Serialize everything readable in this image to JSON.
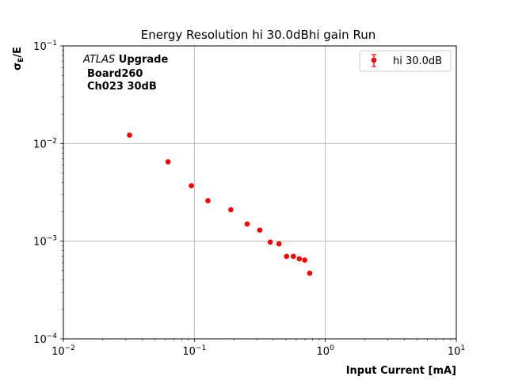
{
  "chart_data": {
    "type": "scatter",
    "title": "Energy Resolution hi 30.0dBhi gain Run",
    "xlabel": "Input Current [mA]",
    "ylabel_main": "σ",
    "ylabel_sub": "E",
    "ylabel_tail": "/E",
    "xscale": "log",
    "yscale": "log",
    "xlim": [
      0.01,
      10
    ],
    "ylim": [
      0.0001,
      0.1
    ],
    "x_ticks": [
      {
        "base": "10",
        "exp": "−2",
        "value": 0.01
      },
      {
        "base": "10",
        "exp": "−1",
        "value": 0.1
      },
      {
        "base": "10",
        "exp": "0",
        "value": 1
      },
      {
        "base": "10",
        "exp": "1",
        "value": 10
      }
    ],
    "y_ticks": [
      {
        "base": "10",
        "exp": "−4",
        "value": 0.0001
      },
      {
        "base": "10",
        "exp": "−3",
        "value": 0.001
      },
      {
        "base": "10",
        "exp": "−2",
        "value": 0.01
      },
      {
        "base": "10",
        "exp": "−1",
        "value": 0.1
      }
    ],
    "grid": true,
    "legend_position": "top-right",
    "annotation": {
      "line1_italic": "ATLAS",
      "line1_bold": " Upgrade",
      "line2": "Board260",
      "line3": "Ch023 30dB"
    },
    "series": [
      {
        "name": "hi 30.0dB",
        "color": "#ff0000",
        "x": [
          0.032,
          0.063,
          0.095,
          0.127,
          0.19,
          0.253,
          0.316,
          0.38,
          0.443,
          0.506,
          0.57,
          0.633,
          0.696,
          0.76
        ],
        "y": [
          0.0122,
          0.0065,
          0.0037,
          0.0026,
          0.0021,
          0.0015,
          0.0013,
          0.00098,
          0.00094,
          0.0007,
          0.0007,
          0.00066,
          0.00064,
          0.00047
        ]
      }
    ]
  }
}
